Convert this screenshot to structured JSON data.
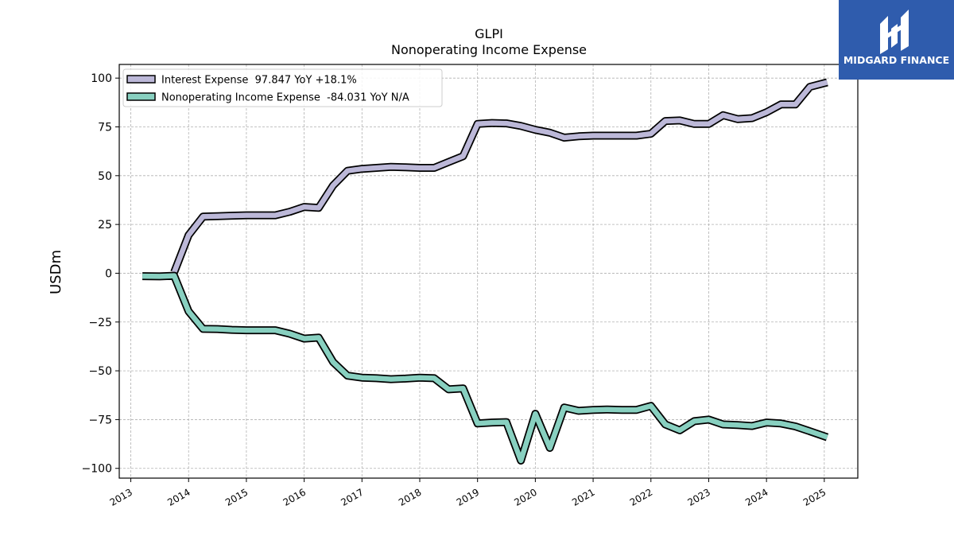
{
  "logo": {
    "text": "MIDGARD FINANCE"
  },
  "chart_data": {
    "type": "line",
    "title": "GLPI",
    "subtitle": "Nonoperating Income Expense",
    "ylabel": "USDm",
    "xlabel": "",
    "xlim": [
      2012.8,
      2025.58
    ],
    "ylim": [
      -105,
      107
    ],
    "yticks": [
      100,
      75,
      50,
      25,
      0,
      -25,
      -50,
      -75,
      -100
    ],
    "ytick_labels": [
      "100",
      "75",
      "50",
      "25",
      "0",
      "−25",
      "−50",
      "−75",
      "−100"
    ],
    "xticks": [
      2013,
      2014,
      2015,
      2016,
      2017,
      2018,
      2019,
      2020,
      2021,
      2022,
      2023,
      2024,
      2025
    ],
    "xtick_labels": [
      "2013",
      "2014",
      "2015",
      "2016",
      "2017",
      "2018",
      "2019",
      "2020",
      "2021",
      "2022",
      "2023",
      "2024",
      "2025"
    ],
    "grid": true,
    "legend_position": "top-left",
    "series": [
      {
        "name": "Interest Expense",
        "legend_label": "Interest Expense  97.847 YoY +18.1%",
        "color": "#bcb8d8",
        "x": [
          2013.2,
          2013.5,
          2013.75,
          2014.0,
          2014.25,
          2014.5,
          2014.75,
          2015.0,
          2015.25,
          2015.5,
          2015.75,
          2016.0,
          2016.25,
          2016.5,
          2016.75,
          2017.0,
          2017.25,
          2017.5,
          2017.75,
          2018.0,
          2018.25,
          2018.5,
          2018.75,
          2019.0,
          2019.25,
          2019.5,
          2019.75,
          2020.0,
          2020.25,
          2020.5,
          2020.75,
          2021.0,
          2021.25,
          2021.5,
          2021.75,
          2022.0,
          2022.25,
          2022.5,
          2022.75,
          2023.0,
          2023.25,
          2023.5,
          2023.75,
          2024.0,
          2024.25,
          2024.5,
          2024.75,
          2025.05
        ],
        "values": [
          null,
          null,
          0.5,
          19.5,
          29.0,
          29.2,
          29.5,
          29.7,
          29.7,
          29.7,
          31.5,
          34.0,
          33.5,
          45.0,
          52.5,
          53.5,
          54.0,
          54.5,
          54.3,
          54.0,
          54.0,
          57.0,
          60.0,
          76.5,
          77.0,
          76.8,
          75.5,
          73.5,
          72.0,
          69.5,
          70.2,
          70.5,
          70.5,
          70.5,
          70.5,
          71.5,
          78.0,
          78.3,
          76.5,
          76.5,
          81.0,
          79.0,
          79.5,
          82.5,
          86.5,
          86.5,
          95.5,
          97.847
        ]
      },
      {
        "name": "Nonoperating Income Expense",
        "legend_label": "Nonoperating Income Expense  -84.031 YoY N/A",
        "color": "#88d0c0",
        "x": [
          2013.2,
          2013.5,
          2013.75,
          2014.0,
          2014.25,
          2014.5,
          2014.75,
          2015.0,
          2015.25,
          2015.5,
          2015.75,
          2016.0,
          2016.25,
          2016.5,
          2016.75,
          2017.0,
          2017.25,
          2017.5,
          2017.75,
          2018.0,
          2018.25,
          2018.5,
          2018.75,
          2019.0,
          2019.25,
          2019.5,
          2019.75,
          2020.0,
          2020.25,
          2020.5,
          2020.75,
          2021.0,
          2021.25,
          2021.5,
          2021.75,
          2022.0,
          2022.25,
          2022.5,
          2022.75,
          2023.0,
          2023.25,
          2023.5,
          2023.75,
          2024.0,
          2024.25,
          2024.5,
          2024.75,
          2025.05
        ],
        "values": [
          -1.5,
          -1.6,
          -1.3,
          -19.5,
          -28.5,
          -28.6,
          -29.0,
          -29.2,
          -29.2,
          -29.2,
          -31.0,
          -33.5,
          -33.0,
          -45.5,
          -52.5,
          -53.5,
          -53.8,
          -54.3,
          -54.0,
          -53.5,
          -53.8,
          -59.5,
          -59.0,
          -77.0,
          -76.5,
          -76.3,
          -96.0,
          -72.0,
          -89.5,
          -68.8,
          -70.5,
          -70.0,
          -69.8,
          -70.0,
          -70.0,
          -68.0,
          -77.5,
          -80.5,
          -75.8,
          -75.0,
          -77.5,
          -77.8,
          -78.3,
          -76.5,
          -77.0,
          -78.5,
          -81.0,
          -84.031
        ]
      }
    ]
  }
}
